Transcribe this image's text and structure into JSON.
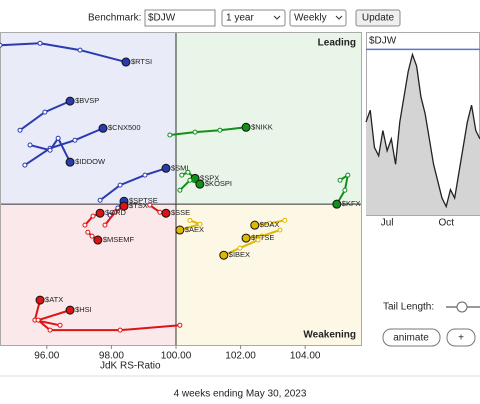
{
  "ui": {
    "benchmark_label": "Benchmark:",
    "benchmark_value": "$DJW",
    "period": "1 year",
    "frequency": "Weekly",
    "update_button": "Update",
    "tail_length_label": "Tail Length:",
    "animate_button": "animate",
    "plus_button": "+",
    "footer": "4 weeks ending May 30, 2023"
  },
  "chart_data": [
    {
      "type": "scatter",
      "x_label": "JdK RS-Ratio",
      "quadrant_labels": {
        "leading": "Leading",
        "weakening": "Weakening"
      },
      "center": {
        "x": 100,
        "y": 100
      },
      "xlim": [
        94.55,
        105.76
      ],
      "ylim": [
        95.64,
        105.33
      ],
      "xticks": [
        {
          "value": 96,
          "label": "96.00"
        },
        {
          "value": 98,
          "label": "98.00"
        },
        {
          "value": 100,
          "label": "100.00"
        },
        {
          "value": 102,
          "label": "102.00"
        },
        {
          "value": 104,
          "label": "104.00"
        }
      ],
      "series": [
        {
          "name": "$RTSI",
          "color": "#2a3bb0",
          "x": [
            94.55,
            95.79,
            97.03,
            98.45
          ],
          "values": [
            104.92,
            104.98,
            104.77,
            104.4
          ]
        },
        {
          "name": "$BVSP",
          "color": "#2a3bb0",
          "x": [
            95.17,
            95.94,
            96.72
          ],
          "values": [
            102.29,
            102.85,
            103.19
          ]
        },
        {
          "name": "$CNX500",
          "color": "#2a3bb0",
          "x": [
            95.32,
            96.1,
            96.87,
            97.74
          ],
          "values": [
            101.21,
            101.73,
            101.98,
            102.35
          ]
        },
        {
          "name": "$IDDOW",
          "color": "#2a3bb0",
          "x": [
            95.48,
            96.1,
            96.35,
            96.72
          ],
          "values": [
            101.83,
            101.67,
            102.04,
            101.3
          ]
        },
        {
          "name": "$SMI",
          "color": "#2a3bb0",
          "x": [
            97.65,
            98.27,
            99.04,
            99.69
          ],
          "values": [
            100.12,
            100.59,
            100.9,
            101.11
          ]
        },
        {
          "name": "$NIKK",
          "color": "#11901a",
          "x": [
            99.81,
            100.59,
            101.36,
            102.17
          ],
          "values": [
            102.14,
            102.23,
            102.29,
            102.38
          ]
        },
        {
          "name": "$SPX",
          "color": "#11901a",
          "x": [
            100.18,
            100.37,
            100.59
          ],
          "values": [
            100.9,
            100.99,
            100.8
          ]
        },
        {
          "name": "$KOSPI",
          "color": "#11901a",
          "x": [
            100.12,
            100.43,
            100.74
          ],
          "values": [
            100.43,
            100.74,
            100.62
          ]
        },
        {
          "name": "$KFX",
          "color": "#11901a",
          "x": [
            105.08,
            105.32,
            105.23,
            104.98
          ],
          "values": [
            100.74,
            100.9,
            100.43,
            100.0
          ]
        },
        {
          "name": "$SPTSE",
          "color": "#2a3bb0",
          "x": [
            97.96,
            98.2,
            98.39
          ],
          "values": [
            99.66,
            99.88,
            100.09
          ]
        },
        {
          "name": "$TSX",
          "color": "#dd1414",
          "x": [
            97.8,
            98.11,
            98.39
          ],
          "values": [
            99.35,
            99.75,
            99.94
          ]
        },
        {
          "name": "$ORD",
          "color": "#dd1414",
          "x": [
            97.18,
            97.43,
            97.65
          ],
          "values": [
            99.35,
            99.63,
            99.72
          ]
        },
        {
          "name": "$SSE",
          "color": "#dd1414",
          "x": [
            99.19,
            99.5,
            99.69
          ],
          "values": [
            99.97,
            99.75,
            99.72
          ]
        },
        {
          "name": "$AEX",
          "color": "#e0b800",
          "x": [
            100.43,
            100.74,
            100.12
          ],
          "values": [
            99.5,
            99.38,
            99.2
          ]
        },
        {
          "name": "$DAX",
          "color": "#e0b800",
          "x": [
            103.37,
            102.91,
            102.44
          ],
          "values": [
            99.5,
            99.41,
            99.35
          ]
        },
        {
          "name": "$FTSE",
          "color": "#e0b800",
          "x": [
            103.22,
            102.66,
            102.17
          ],
          "values": [
            99.2,
            99.01,
            98.95
          ]
        },
        {
          "name": "$IBEX",
          "color": "#e0b800",
          "x": [
            102.54,
            101.98,
            101.48
          ],
          "values": [
            98.89,
            98.64,
            98.42
          ]
        },
        {
          "name": "$MSEMF",
          "color": "#dd1414",
          "x": [
            97.27,
            97.4,
            97.58
          ],
          "values": [
            99.13,
            99.01,
            98.89
          ]
        },
        {
          "name": "$ATX",
          "color": "#dd1414",
          "x": [
            96.41,
            95.63,
            95.79
          ],
          "values": [
            96.25,
            96.41,
            97.03
          ]
        },
        {
          "name": "$HSI",
          "color": "#dd1414",
          "x": [
            100.12,
            98.27,
            96.1,
            95.73,
            96.72
          ],
          "values": [
            96.25,
            96.1,
            96.1,
            96.41,
            96.72
          ]
        }
      ]
    },
    {
      "type": "line",
      "title": "$DJW",
      "color": "#222222",
      "fill": "#d4d4d4",
      "reference_line": 98,
      "reference_color": "#5577cc",
      "ylim": [
        0,
        100
      ],
      "categories": [
        null,
        null,
        null,
        null,
        null,
        "Jul",
        null,
        null,
        null,
        null,
        null,
        null,
        null,
        null,
        null,
        null,
        null,
        null,
        null,
        "Oct",
        null,
        null,
        null,
        null,
        null,
        null,
        null,
        null
      ],
      "values": [
        55,
        62,
        40,
        35,
        50,
        38,
        45,
        30,
        55,
        70,
        85,
        95,
        88,
        70,
        60,
        45,
        30,
        20,
        10,
        5,
        15,
        10,
        25,
        40,
        55,
        65,
        50,
        45
      ]
    }
  ]
}
